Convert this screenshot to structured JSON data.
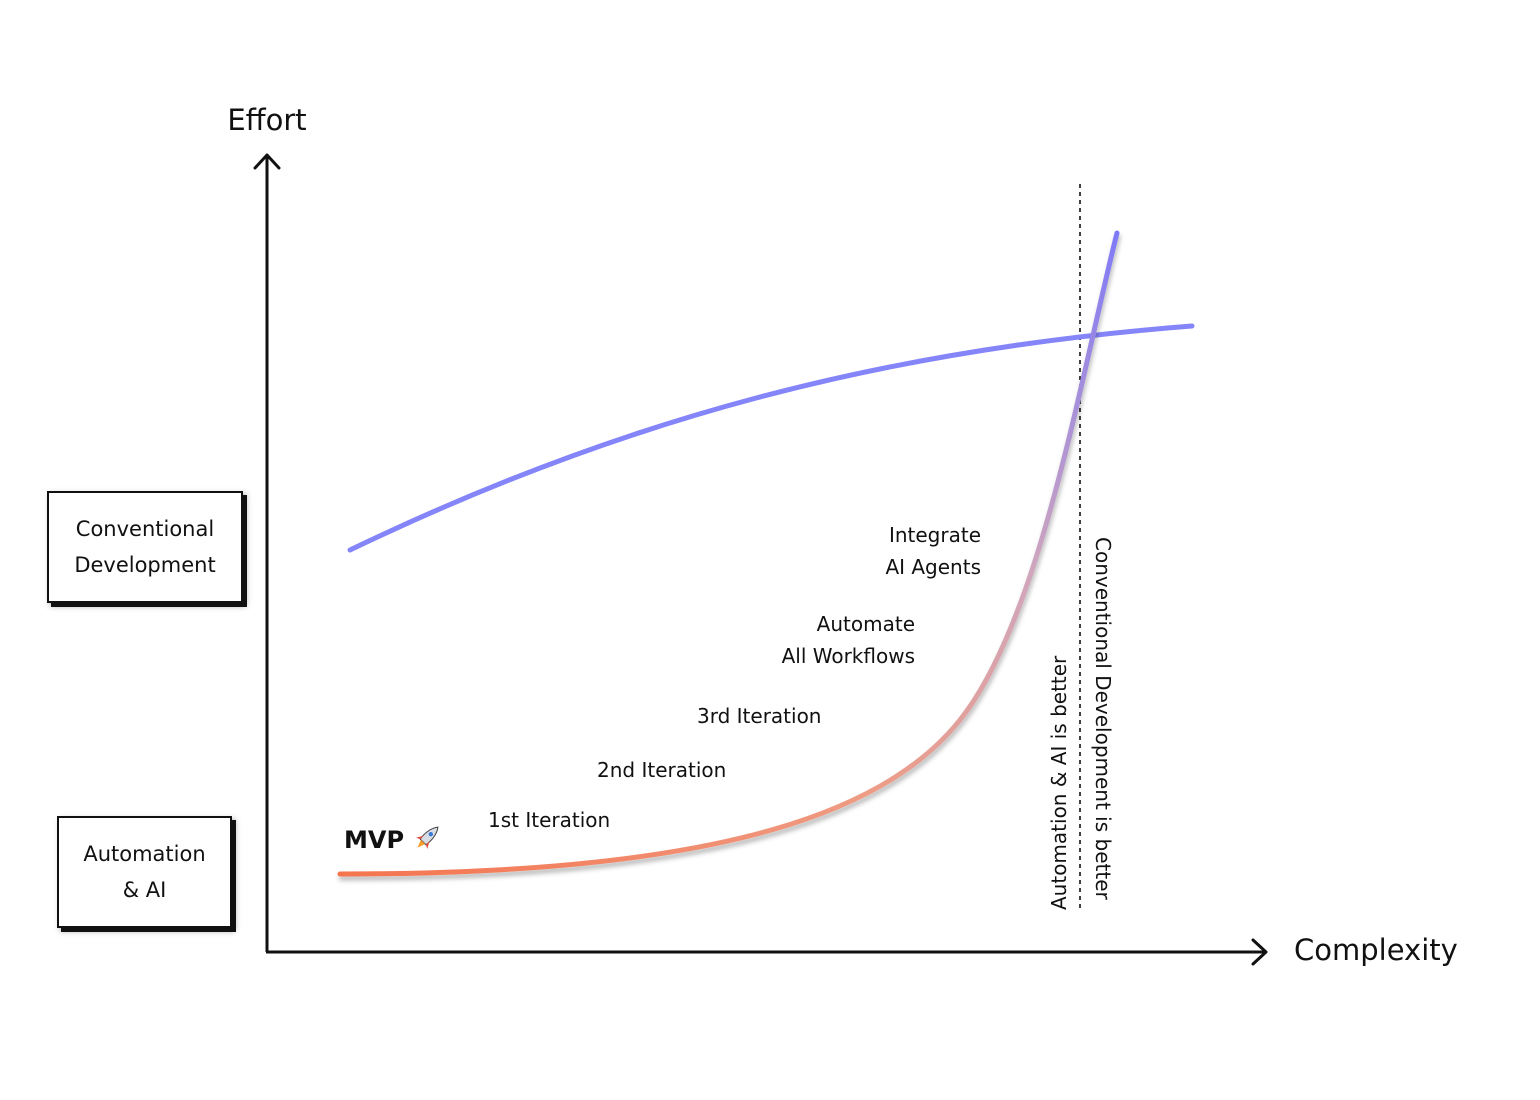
{
  "axes": {
    "y_label": "Effort",
    "x_label": "Complexity"
  },
  "legend": {
    "conventional": {
      "line1": "Conventional",
      "line2": "Development",
      "color": "#8585FA"
    },
    "automation": {
      "line1": "Automation",
      "line2": "& AI",
      "color_start": "#F5744E",
      "color_mid": "#DCA9AF",
      "color_end": "#7F7AF7"
    }
  },
  "annotations": {
    "mvp": "MVP",
    "mvp_icon": "rocket-icon",
    "first_iteration": "1st Iteration",
    "second_iteration": "2nd Iteration",
    "third_iteration": "3rd Iteration",
    "automate_line1": "Automate",
    "automate_line2": "All Workflows",
    "integrate_line1": "Integrate",
    "integrate_line2": "AI Agents"
  },
  "divider": {
    "left_label": "Automation & AI is better",
    "right_label": "Conventional Development is better"
  }
}
